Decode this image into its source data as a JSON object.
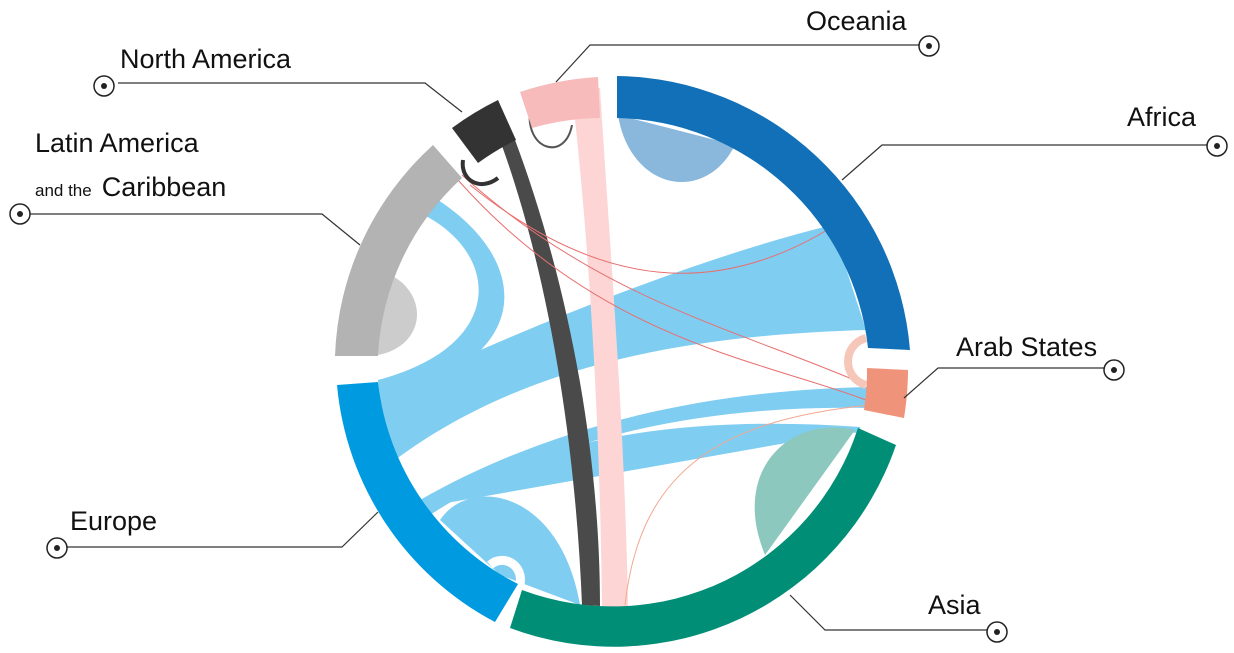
{
  "regions": {
    "oceania": {
      "name": "Oceania",
      "color": "#f7bbbb",
      "ribbon": "#fdd5d5"
    },
    "north_america": {
      "name": "North America",
      "color": "#333333",
      "ribbon": "#4a4a4a"
    },
    "latin_america": {
      "line1": "Latin America",
      "line2_small": "and the",
      "line2_big": "Caribbean",
      "color": "#b3b3b3",
      "ribbon": "#cccccc"
    },
    "africa": {
      "name": "Africa",
      "color": "#1170b7",
      "ribbon": "#8ab7dc"
    },
    "arab_states": {
      "name": "Arab States",
      "color": "#ef937b",
      "ribbon": "#f6c6b8"
    },
    "europe": {
      "name": "Europe",
      "color": "#009ae0",
      "ribbon": "#80cdf2"
    },
    "asia": {
      "name": "Asia",
      "color": "#008e76",
      "ribbon": "#8cc8bd"
    }
  },
  "icons": {
    "marker": "target-dot-icon"
  }
}
